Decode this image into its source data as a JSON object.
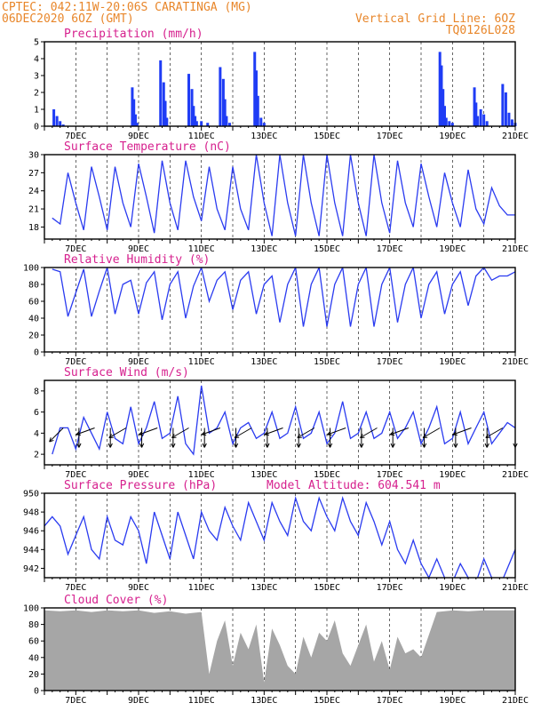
{
  "header": {
    "line1": "CPTEC:   042:11W-20:06S   CARATINGA (MG)",
    "line2": "06DEC2020 6OZ (GMT)",
    "grid_note": "Vertical Grid Line: 6OZ",
    "code": "TQ0126L028"
  },
  "colors": {
    "header": "#e8862a",
    "title": "#d6208e",
    "line": "#2a3bf0",
    "bar": "#1f3cf5",
    "cloud": "#a6a6a6"
  },
  "x_dates": [
    "7DEC",
    "9DEC",
    "11DEC",
    "13DEC",
    "15DEC",
    "17DEC",
    "19DEC",
    "21DEC"
  ],
  "chart_data": [
    {
      "type": "bar",
      "title": "Precipitation (mm/h)",
      "ylim": [
        0,
        5
      ],
      "yticks": [
        0,
        1,
        2,
        3,
        4,
        5
      ],
      "x_unit": "day of December 2020",
      "x": [
        6.3,
        6.4,
        6.5,
        6.6,
        8.8,
        8.85,
        8.9,
        8.95,
        9.7,
        9.8,
        9.85,
        9.9,
        10.6,
        10.7,
        10.75,
        10.8,
        10.85,
        11.0,
        11.2,
        11.6,
        11.7,
        11.75,
        11.8,
        11.9,
        12.7,
        12.75,
        12.8,
        12.9,
        13.0,
        18.6,
        18.65,
        18.7,
        18.75,
        18.8,
        18.9,
        19.0,
        19.7,
        19.75,
        19.8,
        19.9,
        20.0,
        20.1,
        20.6,
        20.7,
        20.8,
        20.9,
        21.0
      ],
      "values": [
        1.0,
        0.6,
        0.3,
        0.1,
        2.3,
        1.6,
        0.7,
        0.2,
        3.9,
        2.6,
        1.5,
        0.5,
        3.1,
        2.2,
        1.2,
        0.6,
        0.3,
        0.3,
        0.2,
        3.5,
        2.8,
        1.6,
        0.6,
        0.2,
        4.4,
        3.3,
        1.8,
        0.5,
        0.2,
        4.4,
        3.6,
        2.2,
        1.2,
        0.5,
        0.3,
        0.2,
        2.3,
        1.4,
        0.6,
        1.0,
        0.7,
        0.3,
        2.5,
        2.0,
        0.8,
        0.4,
        0.2
      ]
    },
    {
      "type": "line",
      "title": "Surface Temperature (nC)",
      "ylim": [
        16,
        30
      ],
      "yticks": [
        18,
        21,
        24,
        27,
        30
      ],
      "x_unit": "day of December 2020",
      "x": [
        6.25,
        6.5,
        6.75,
        7.0,
        7.25,
        7.5,
        7.75,
        8.0,
        8.25,
        8.5,
        8.75,
        9.0,
        9.25,
        9.5,
        9.75,
        10.0,
        10.25,
        10.5,
        10.75,
        11.0,
        11.25,
        11.5,
        11.75,
        12.0,
        12.25,
        12.5,
        12.75,
        13.0,
        13.25,
        13.5,
        13.75,
        14.0,
        14.25,
        14.5,
        14.75,
        15.0,
        15.25,
        15.5,
        15.75,
        16.0,
        16.25,
        16.5,
        16.75,
        17.0,
        17.25,
        17.5,
        17.75,
        18.0,
        18.25,
        18.5,
        18.75,
        19.0,
        19.25,
        19.5,
        19.75,
        20.0,
        20.25,
        20.5,
        20.75,
        21.0
      ],
      "values": [
        19.5,
        18.5,
        27.0,
        22.0,
        17.5,
        28.0,
        23.0,
        17.5,
        28.0,
        22.0,
        18.0,
        28.5,
        23.0,
        17.0,
        29.0,
        22.0,
        17.5,
        29.0,
        23.0,
        19.0,
        28.0,
        21.0,
        17.5,
        28.0,
        21.0,
        17.5,
        30.0,
        22.0,
        16.5,
        30.0,
        22.0,
        16.5,
        30.0,
        22.0,
        16.5,
        30.0,
        22.0,
        16.5,
        30.0,
        22.0,
        16.5,
        30.0,
        22.0,
        17.0,
        29.0,
        22.0,
        18.0,
        28.5,
        23.0,
        18.0,
        27.0,
        22.0,
        18.0,
        27.5,
        21.0,
        18.5,
        24.5,
        21.5,
        20.0,
        20.0
      ]
    },
    {
      "type": "line",
      "title": "Relative Humidity (%)",
      "ylim": [
        0,
        100
      ],
      "yticks": [
        0,
        20,
        40,
        60,
        80,
        100
      ],
      "x_unit": "day of December 2020",
      "x": [
        6.25,
        6.5,
        6.75,
        7.0,
        7.25,
        7.5,
        7.75,
        8.0,
        8.25,
        8.5,
        8.75,
        9.0,
        9.25,
        9.5,
        9.75,
        10.0,
        10.25,
        10.5,
        10.75,
        11.0,
        11.25,
        11.5,
        11.75,
        12.0,
        12.25,
        12.5,
        12.75,
        13.0,
        13.25,
        13.5,
        13.75,
        14.0,
        14.25,
        14.5,
        14.75,
        15.0,
        15.25,
        15.5,
        15.75,
        16.0,
        16.25,
        16.5,
        16.75,
        17.0,
        17.25,
        17.5,
        17.75,
        18.0,
        18.25,
        18.5,
        18.75,
        19.0,
        19.25,
        19.5,
        19.75,
        20.0,
        20.25,
        20.5,
        20.75,
        21.0
      ],
      "values": [
        98,
        95,
        42,
        70,
        98,
        42,
        72,
        100,
        45,
        80,
        85,
        45,
        82,
        95,
        38,
        80,
        95,
        40,
        78,
        100,
        60,
        85,
        95,
        50,
        85,
        95,
        45,
        80,
        90,
        35,
        80,
        100,
        30,
        80,
        100,
        30,
        80,
        100,
        30,
        80,
        100,
        30,
        80,
        100,
        35,
        80,
        100,
        40,
        80,
        95,
        45,
        80,
        95,
        55,
        90,
        100,
        85,
        90,
        90,
        95
      ]
    },
    {
      "type": "line",
      "title": "Surface Wind (m/s)",
      "ylim": [
        1,
        9
      ],
      "yticks": [
        2,
        4,
        6,
        8
      ],
      "x_unit": "day of December 2020",
      "x": [
        6.25,
        6.5,
        6.75,
        7.0,
        7.25,
        7.5,
        7.75,
        8.0,
        8.25,
        8.5,
        8.75,
        9.0,
        9.25,
        9.5,
        9.75,
        10.0,
        10.25,
        10.5,
        10.75,
        11.0,
        11.25,
        11.5,
        11.75,
        12.0,
        12.25,
        12.5,
        12.75,
        13.0,
        13.25,
        13.5,
        13.75,
        14.0,
        14.25,
        14.5,
        14.75,
        15.0,
        15.25,
        15.5,
        15.75,
        16.0,
        16.25,
        16.5,
        16.75,
        17.0,
        17.25,
        17.5,
        17.75,
        18.0,
        18.25,
        18.5,
        18.75,
        19.0,
        19.25,
        19.5,
        19.75,
        20.0,
        20.25,
        20.5,
        20.75,
        21.0
      ],
      "values": [
        2.0,
        4.5,
        4.5,
        2.5,
        5.5,
        4.0,
        2.5,
        6.0,
        3.5,
        3.0,
        6.5,
        3.0,
        4.5,
        7.0,
        3.5,
        4.0,
        7.5,
        3.0,
        2.0,
        8.5,
        4.0,
        4.5,
        6.0,
        3.0,
        4.5,
        5.0,
        3.5,
        4.0,
        6.0,
        3.5,
        4.0,
        6.5,
        3.5,
        4.0,
        6.0,
        3.0,
        4.0,
        7.0,
        3.5,
        4.0,
        6.0,
        3.5,
        4.0,
        6.0,
        3.5,
        4.5,
        6.0,
        3.0,
        4.5,
        6.5,
        3.0,
        3.5,
        6.0,
        3.0,
        4.5,
        6.0,
        3.0,
        4.0,
        5.0,
        4.5
      ],
      "arrows_x": [
        6.6,
        7.1,
        7.6,
        8.1,
        8.6,
        9.1,
        9.6,
        10.1,
        10.6,
        11.1,
        11.6,
        12.1,
        12.6,
        13.1,
        13.6,
        14.1,
        14.6,
        15.1,
        15.6,
        16.1,
        16.6,
        17.1,
        17.6,
        18.1,
        18.6,
        19.1,
        19.6,
        20.1,
        20.6,
        21.0
      ],
      "arrows_dir_deg": [
        225,
        270,
        200,
        270,
        210,
        270,
        200,
        270,
        210,
        270,
        200,
        270,
        210,
        270,
        200,
        270,
        210,
        270,
        200,
        270,
        210,
        270,
        200,
        270,
        210,
        270,
        200,
        270,
        210,
        270
      ]
    },
    {
      "type": "line",
      "title": "Surface Pressure (hPa)",
      "annotation": "Model Altitude: 604.541 m",
      "ylim": [
        941,
        950
      ],
      "yticks": [
        942,
        944,
        946,
        948,
        950
      ],
      "x_unit": "day of December 2020",
      "x": [
        6.0,
        6.25,
        6.5,
        6.75,
        7.0,
        7.25,
        7.5,
        7.75,
        8.0,
        8.25,
        8.5,
        8.75,
        9.0,
        9.25,
        9.5,
        9.75,
        10.0,
        10.25,
        10.5,
        10.75,
        11.0,
        11.25,
        11.5,
        11.75,
        12.0,
        12.25,
        12.5,
        12.75,
        13.0,
        13.25,
        13.5,
        13.75,
        14.0,
        14.25,
        14.5,
        14.75,
        15.0,
        15.25,
        15.5,
        15.75,
        16.0,
        16.25,
        16.5,
        16.75,
        17.0,
        17.25,
        17.5,
        17.75,
        18.0,
        18.25,
        18.5,
        18.75,
        19.0,
        19.25,
        19.5,
        19.75,
        20.0,
        20.25,
        20.5,
        20.75,
        21.0
      ],
      "values": [
        946.5,
        947.5,
        946.5,
        943.5,
        945.5,
        947.5,
        944.0,
        943.0,
        947.5,
        945.0,
        944.5,
        947.5,
        946.0,
        942.5,
        948.0,
        945.5,
        943.0,
        948.0,
        945.5,
        943.0,
        948.0,
        946.0,
        945.0,
        948.5,
        946.5,
        945.0,
        949.0,
        947.0,
        945.0,
        949.0,
        947.0,
        945.5,
        949.5,
        947.0,
        946.0,
        949.5,
        947.5,
        946.0,
        949.5,
        947.0,
        945.5,
        949.0,
        947.0,
        944.5,
        947.0,
        944.0,
        942.5,
        945.0,
        942.5,
        941.0,
        943.0,
        941.0,
        940.5,
        942.5,
        941.0,
        940.5,
        943.0,
        941.0,
        940.0,
        942.0,
        944.0
      ]
    },
    {
      "type": "area",
      "title": "Cloud Cover (%)",
      "ylim": [
        0,
        100
      ],
      "yticks": [
        0,
        20,
        40,
        60,
        80,
        100
      ],
      "x_unit": "day of December 2020",
      "x": [
        6.0,
        6.5,
        7.0,
        7.5,
        8.0,
        8.5,
        9.0,
        9.5,
        10.0,
        10.5,
        11.0,
        11.25,
        11.5,
        11.75,
        12.0,
        12.25,
        12.5,
        12.75,
        13.0,
        13.25,
        13.5,
        13.75,
        14.0,
        14.25,
        14.5,
        14.75,
        15.0,
        15.25,
        15.5,
        15.75,
        16.0,
        16.25,
        16.5,
        16.75,
        17.0,
        17.25,
        17.5,
        17.75,
        18.0,
        18.5,
        19.0,
        19.5,
        20.0,
        20.5,
        21.0
      ],
      "values": [
        97,
        96,
        97,
        95,
        97,
        96,
        97,
        94,
        96,
        93,
        95,
        20,
        60,
        85,
        30,
        70,
        50,
        80,
        10,
        75,
        55,
        30,
        20,
        65,
        40,
        70,
        60,
        85,
        45,
        30,
        55,
        80,
        35,
        60,
        25,
        65,
        45,
        50,
        40,
        95,
        97,
        96,
        97,
        97,
        97
      ]
    }
  ]
}
